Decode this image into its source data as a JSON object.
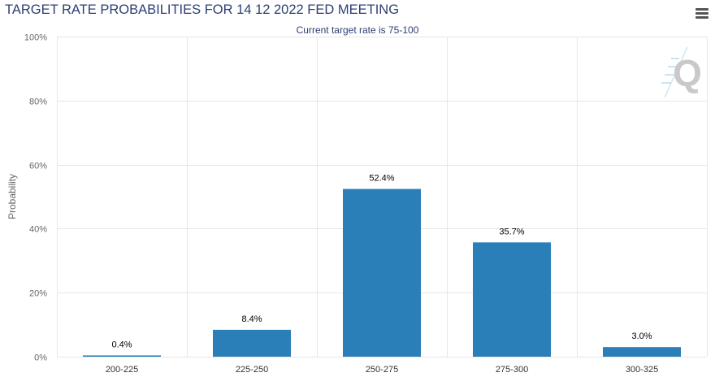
{
  "header": {
    "title": "TARGET RATE PROBABILITIES FOR 14 12 2022 FED MEETING"
  },
  "menu": {
    "icon": "hamburger-menu-icon"
  },
  "logo": {
    "icon": "q-logo-icon",
    "text": "Q"
  },
  "colors": {
    "bar": "#2b7fb8",
    "title": "#2d3f73",
    "grid": "#e6e6e6"
  },
  "chart_data": {
    "type": "bar",
    "subtitle": "Current target rate is 75-100",
    "ylabel": "Probability",
    "xlabel": "",
    "ylim": [
      0,
      100
    ],
    "yticks": [
      "0%",
      "20%",
      "40%",
      "60%",
      "80%",
      "100%"
    ],
    "ytick_values": [
      0,
      20,
      40,
      60,
      80,
      100
    ],
    "categories": [
      "200-225",
      "225-250",
      "250-275",
      "275-300",
      "300-325"
    ],
    "values": [
      0.4,
      8.4,
      52.4,
      35.7,
      3.0
    ],
    "data_labels": [
      "0.4%",
      "8.4%",
      "52.4%",
      "35.7%",
      "3.0%"
    ],
    "grid": true,
    "legend": "none"
  }
}
